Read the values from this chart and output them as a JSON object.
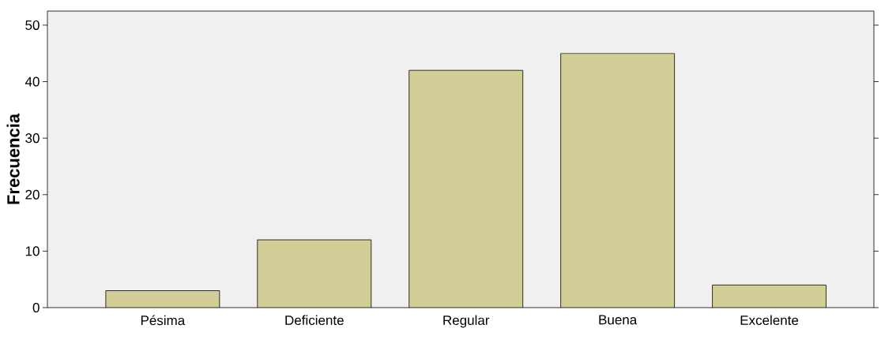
{
  "chart_data": {
    "type": "bar",
    "ylabel": "Frecuencia",
    "categories": [
      "Pésima",
      "Deficiente",
      "Regular",
      "Buena",
      "Excelente"
    ],
    "values": [
      3,
      12,
      42,
      45,
      4
    ],
    "color": "#d3ce97",
    "ylim": [
      0,
      52.5
    ],
    "yticks": [
      0,
      10,
      20,
      30,
      40,
      50
    ],
    "grid": false
  }
}
